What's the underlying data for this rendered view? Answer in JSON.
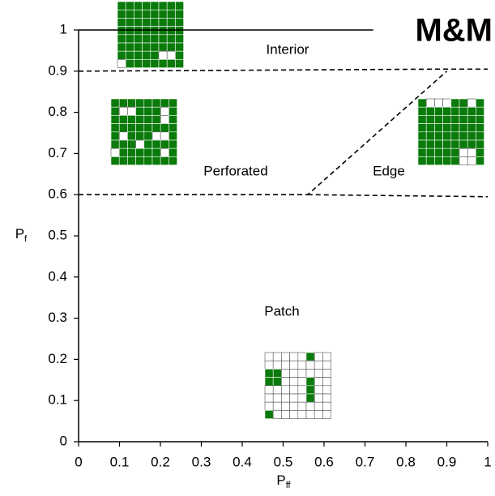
{
  "chart_data": {
    "type": "line",
    "title": "M&M",
    "xlabel": "P",
    "xlabel_subscript": "ff",
    "ylabel": "P",
    "ylabel_subscript": "f",
    "xlim": [
      0,
      1
    ],
    "ylim": [
      0,
      1
    ],
    "xticks": [
      0,
      0.1,
      0.2,
      0.3,
      0.4,
      0.5,
      0.6,
      0.7,
      0.8,
      0.9,
      1
    ],
    "yticks": [
      0,
      0.1,
      0.2,
      0.3,
      0.4,
      0.5,
      0.6,
      0.7,
      0.8,
      0.9,
      1
    ],
    "series": [
      {
        "color": "#000000",
        "style": "solid",
        "x": [
          0,
          0.72
        ],
        "values": [
          1,
          1
        ]
      },
      {
        "color": "#000000",
        "style": "dashed",
        "x": [
          0,
          0.89,
          1
        ],
        "values": [
          0.9,
          0.905,
          0.905
        ]
      },
      {
        "color": "#000000",
        "style": "dashed",
        "x": [
          0,
          0.56,
          0.9
        ],
        "values": [
          0.6,
          0.6,
          0.9
        ]
      },
      {
        "color": "#000000",
        "style": "dashed",
        "x": [
          0.56,
          1
        ],
        "values": [
          0.6,
          0.595
        ]
      }
    ],
    "annotations": [
      "Interior",
      "Perforated",
      "Edge",
      "Patch"
    ],
    "grid": false
  }
}
